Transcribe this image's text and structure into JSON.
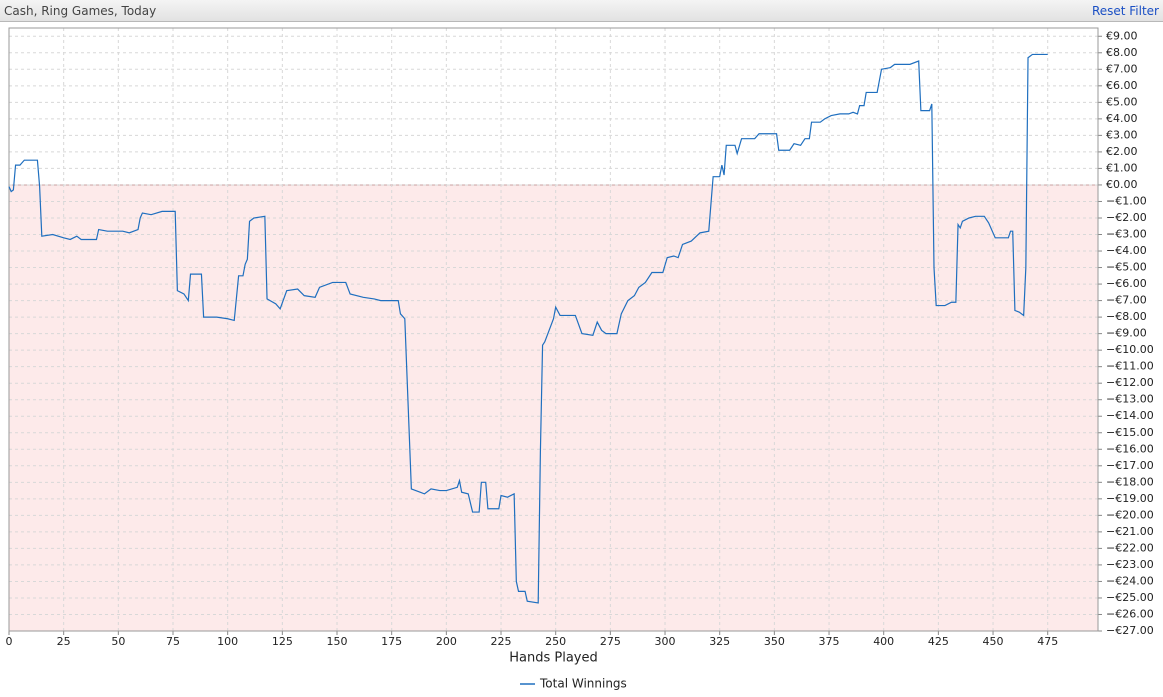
{
  "header": {
    "filter": "Cash, Ring Games, Today",
    "reset": "Reset Filter"
  },
  "chart_data": {
    "type": "line",
    "x_label": "Hands Played",
    "x": [
      0,
      1,
      2,
      3,
      5,
      7,
      13,
      14,
      15,
      20,
      25,
      28,
      31,
      33,
      40,
      41,
      45,
      52,
      55,
      59,
      60,
      61,
      65,
      70,
      76,
      77,
      80,
      82,
      83,
      88,
      89,
      95,
      100,
      103,
      105,
      107,
      108,
      109,
      110,
      112,
      117,
      118,
      122,
      124,
      127,
      132,
      135,
      140,
      142,
      148,
      154,
      156,
      162,
      167,
      170,
      178,
      179,
      181,
      184,
      188,
      190,
      193,
      197,
      200,
      205,
      206,
      207,
      210,
      212,
      215,
      216,
      218,
      219,
      224,
      225,
      228,
      231,
      232,
      233,
      236,
      237,
      242,
      243,
      244,
      245,
      247,
      249,
      250,
      252,
      256,
      259,
      262,
      267,
      269,
      271,
      273,
      278,
      280,
      283,
      286,
      288,
      291,
      294,
      299,
      301,
      304,
      306,
      308,
      312,
      316,
      320,
      322,
      325,
      326,
      327,
      328,
      332,
      333,
      335,
      341,
      343,
      351,
      352,
      357,
      359,
      362,
      364,
      366,
      367,
      371,
      373,
      376,
      380,
      384,
      386,
      388,
      389,
      391,
      392,
      397,
      399,
      403,
      405,
      412,
      416,
      417,
      421,
      422,
      423,
      424,
      428,
      431,
      433,
      434,
      435,
      436,
      439,
      442,
      446,
      448,
      451,
      457,
      458,
      459,
      460,
      462,
      464,
      465,
      466,
      468,
      475
    ],
    "series": [
      {
        "name": "Total Winnings",
        "color": "#1f6fbf",
        "values": [
          -0.1,
          -0.4,
          -0.3,
          1.2,
          1.2,
          1.5,
          1.5,
          -0.1,
          -3.1,
          -3.0,
          -3.2,
          -3.3,
          -3.1,
          -3.3,
          -3.3,
          -2.7,
          -2.8,
          -2.8,
          -2.9,
          -2.7,
          -2.0,
          -1.7,
          -1.8,
          -1.6,
          -1.6,
          -6.4,
          -6.6,
          -7.0,
          -5.4,
          -5.4,
          -8.0,
          -8.0,
          -8.1,
          -8.2,
          -5.5,
          -5.5,
          -4.8,
          -4.5,
          -2.2,
          -2.0,
          -1.9,
          -6.9,
          -7.2,
          -7.5,
          -6.4,
          -6.3,
          -6.7,
          -6.8,
          -6.2,
          -5.9,
          -5.9,
          -6.6,
          -6.8,
          -6.9,
          -7.0,
          -7.0,
          -7.8,
          -8.1,
          -18.4,
          -18.6,
          -18.7,
          -18.4,
          -18.5,
          -18.5,
          -18.3,
          -17.9,
          -18.6,
          -18.7,
          -19.8,
          -19.8,
          -18.0,
          -18.0,
          -19.6,
          -19.6,
          -18.8,
          -18.9,
          -18.7,
          -24.0,
          -24.6,
          -24.6,
          -25.2,
          -25.3,
          -16.2,
          -9.7,
          -9.5,
          -8.8,
          -8.1,
          -7.4,
          -7.9,
          -7.9,
          -7.9,
          -9.0,
          -9.1,
          -8.3,
          -8.8,
          -9.0,
          -9.0,
          -7.8,
          -7.0,
          -6.7,
          -6.2,
          -5.9,
          -5.3,
          -5.3,
          -4.4,
          -4.3,
          -4.4,
          -3.6,
          -3.4,
          -2.9,
          -2.8,
          0.5,
          0.5,
          1.2,
          0.6,
          2.4,
          2.4,
          1.9,
          2.8,
          2.8,
          3.1,
          3.1,
          2.1,
          2.1,
          2.5,
          2.4,
          2.8,
          2.8,
          3.8,
          3.8,
          4.0,
          4.2,
          4.3,
          4.3,
          4.4,
          4.3,
          4.8,
          4.8,
          5.6,
          5.6,
          7.0,
          7.1,
          7.3,
          7.3,
          7.5,
          4.5,
          4.5,
          4.9,
          -5.0,
          -7.3,
          -7.3,
          -7.1,
          -7.1,
          -2.4,
          -2.6,
          -2.2,
          -2.0,
          -1.9,
          -1.9,
          -2.3,
          -3.2,
          -3.2,
          -2.8,
          -2.8,
          -7.6,
          -7.7,
          -7.9,
          -5.0,
          7.7,
          7.9,
          7.9
        ]
      }
    ],
    "xlim": [
      0,
      498
    ],
    "xticks": [
      0,
      25,
      50,
      75,
      100,
      125,
      150,
      175,
      200,
      225,
      250,
      275,
      300,
      325,
      350,
      375,
      400,
      425,
      450,
      475
    ],
    "ylim": [
      -27,
      9.5
    ],
    "yticks": [
      {
        "value": 9,
        "label": "€9.00"
      },
      {
        "value": 8,
        "label": "€8.00"
      },
      {
        "value": 7,
        "label": "€7.00"
      },
      {
        "value": 6,
        "label": "€6.00"
      },
      {
        "value": 5,
        "label": "€5.00"
      },
      {
        "value": 4,
        "label": "€4.00"
      },
      {
        "value": 3,
        "label": "€3.00"
      },
      {
        "value": 2,
        "label": "€2.00"
      },
      {
        "value": 1,
        "label": "€1.00"
      },
      {
        "value": 0,
        "label": "€0.00"
      },
      {
        "value": -1,
        "label": "−€1.00"
      },
      {
        "value": -2,
        "label": "−€2.00"
      },
      {
        "value": -3,
        "label": "−€3.00"
      },
      {
        "value": -4,
        "label": "−€4.00"
      },
      {
        "value": -5,
        "label": "−€5.00"
      },
      {
        "value": -6,
        "label": "−€6.00"
      },
      {
        "value": -7,
        "label": "−€7.00"
      },
      {
        "value": -8,
        "label": "−€8.00"
      },
      {
        "value": -9,
        "label": "−€9.00"
      },
      {
        "value": -10,
        "label": "−€10.00"
      },
      {
        "value": -11,
        "label": "−€11.00"
      },
      {
        "value": -12,
        "label": "−€12.00"
      },
      {
        "value": -13,
        "label": "−€13.00"
      },
      {
        "value": -14,
        "label": "−€14.00"
      },
      {
        "value": -15,
        "label": "−€15.00"
      },
      {
        "value": -16,
        "label": "−€16.00"
      },
      {
        "value": -17,
        "label": "−€17.00"
      },
      {
        "value": -18,
        "label": "−€18.00"
      },
      {
        "value": -19,
        "label": "−€19.00"
      },
      {
        "value": -20,
        "label": "−€20.00"
      },
      {
        "value": -21,
        "label": "−€21.00"
      },
      {
        "value": -22,
        "label": "−€22.00"
      },
      {
        "value": -23,
        "label": "−€23.00"
      },
      {
        "value": -24,
        "label": "−€24.00"
      },
      {
        "value": -25,
        "label": "−€25.00"
      },
      {
        "value": -26,
        "label": "−€26.00"
      },
      {
        "value": -27,
        "label": "−€27.00"
      }
    ],
    "grid": true
  }
}
